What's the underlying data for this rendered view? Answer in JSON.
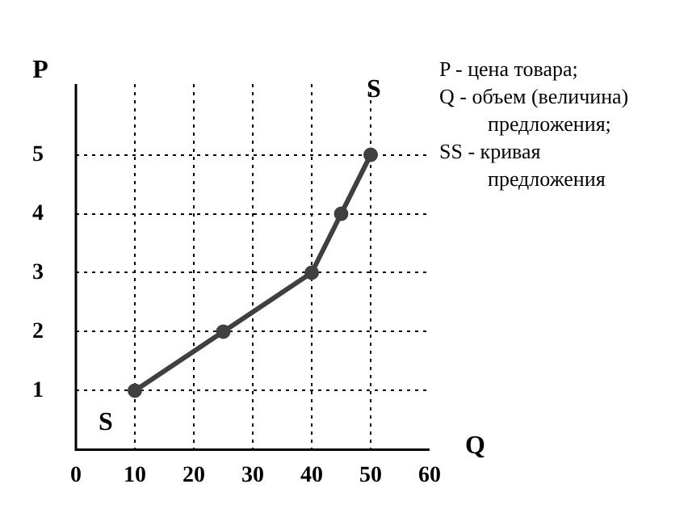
{
  "chart_data": {
    "type": "line",
    "xlabel": "Q",
    "ylabel": "P",
    "x": [
      10,
      25,
      40,
      45,
      50
    ],
    "series": [
      {
        "color": "#404040",
        "values": [
          1,
          2,
          3,
          4,
          5
        ]
      }
    ],
    "xlim": [
      0,
      60
    ],
    "xticks": [
      0,
      10,
      20,
      30,
      40,
      50,
      60
    ],
    "ylim": [
      0,
      6.2
    ],
    "yticks": [
      1,
      2,
      3,
      4,
      5
    ],
    "grid": true,
    "marker": "circle",
    "line_style": "solid",
    "legend": false,
    "annotations": [
      "S",
      "S",
      "P - цена товара;",
      "Q - объем (величина) предложения;",
      "SS - кривая предложения"
    ]
  }
}
